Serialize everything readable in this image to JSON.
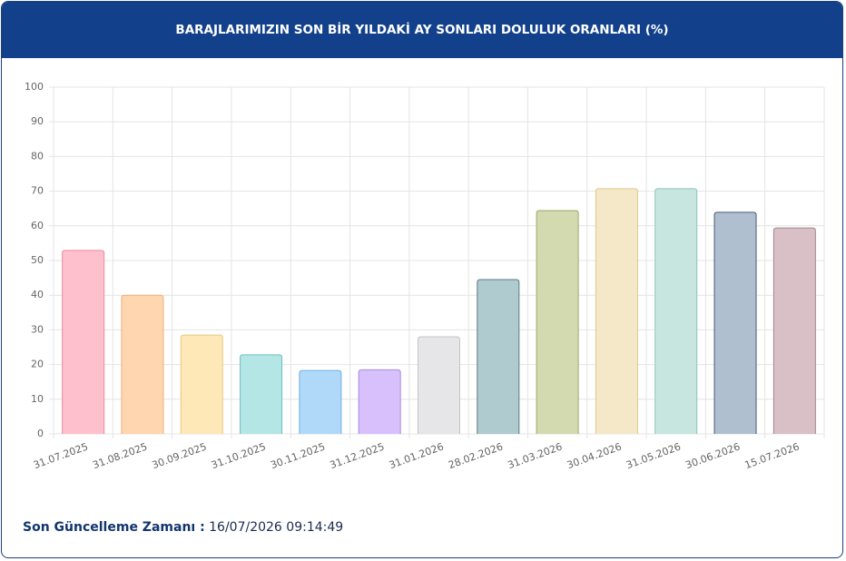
{
  "chart_data": {
    "type": "bar",
    "title": "BARAJLARIMIZIN SON BİR YILDAKİ AY SONLARI DOLULUK ORANLARI (%)",
    "categories": [
      "31.07.2025",
      "31.08.2025",
      "30.09.2025",
      "31.10.2025",
      "30.11.2025",
      "31.12.2025",
      "31.01.2026",
      "28.02.2026",
      "31.03.2026",
      "30.04.2026",
      "31.05.2026",
      "30.06.2026",
      "15.07.2026"
    ],
    "values": [
      52.9,
      40.0,
      28.5,
      22.8,
      18.3,
      18.5,
      28.0,
      44.5,
      64.4,
      70.7,
      70.7,
      63.9,
      59.4
    ],
    "colors": [
      "#ffc0cd",
      "#ffd6b0",
      "#ffe8b8",
      "#b4e6e6",
      "#b0d8f8",
      "#d8c0fc",
      "#e6e6e8",
      "#b0cbcf",
      "#d3dab0",
      "#f5e8c8",
      "#c8e6e0",
      "#b0bfd0",
      "#d8c0c6"
    ],
    "border_colors": [
      "#e88a9c",
      "#e8b07e",
      "#e8c880",
      "#6cc0c0",
      "#70b0e0",
      "#a88ae0",
      "#c4c4c8",
      "#5a7a80",
      "#9aa868",
      "#e0c888",
      "#8cc4b8",
      "#4a5a72",
      "#a08890"
    ],
    "ylim": [
      0,
      100
    ],
    "yticks": [
      0,
      10,
      20,
      30,
      40,
      50,
      60,
      70,
      80,
      90,
      100
    ],
    "grid": true
  },
  "footer": {
    "label": "Son Güncelleme Zamanı :",
    "value": "16/07/2026 09:14:49"
  }
}
